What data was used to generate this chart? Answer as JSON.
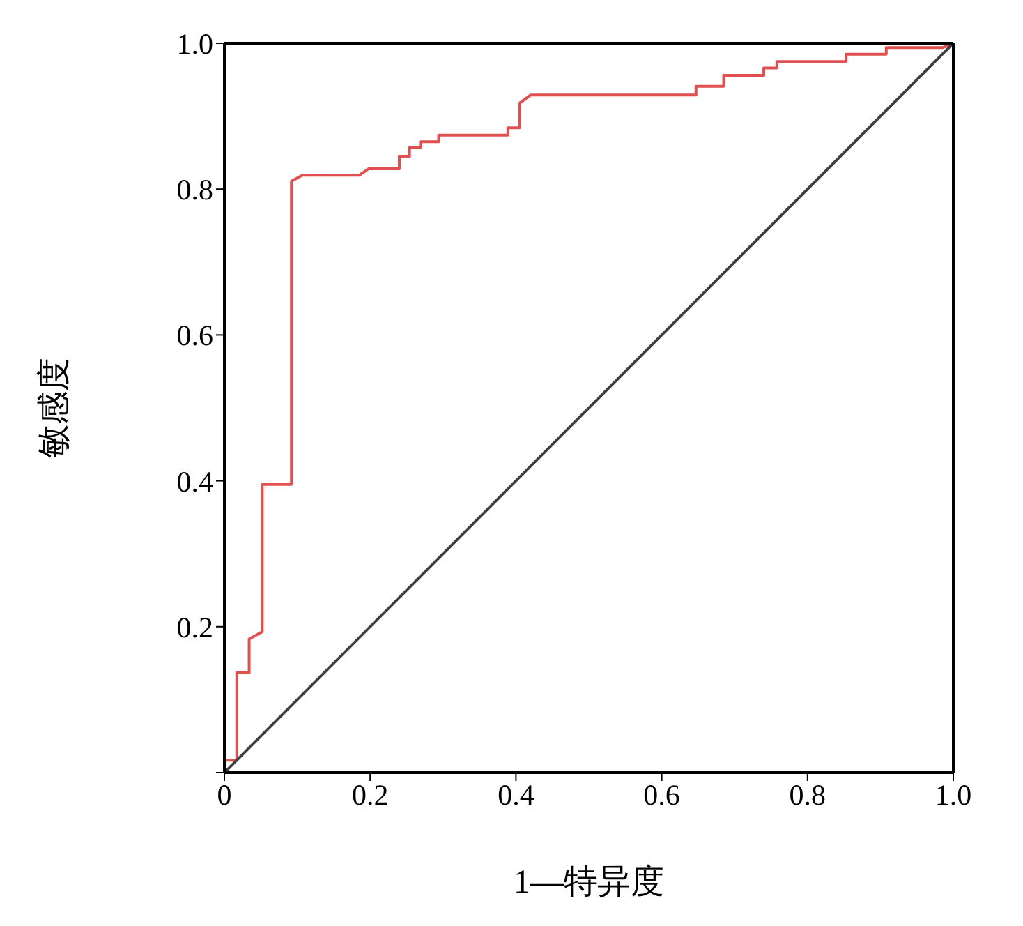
{
  "chart_data": {
    "type": "line",
    "xlabel": "1—特异度",
    "ylabel": "敏感度",
    "xlim": [
      0,
      1
    ],
    "ylim": [
      0,
      1
    ],
    "xticks": [
      0,
      0.2,
      0.4,
      0.6,
      0.8,
      {
        "value": 1,
        "label": "1.0"
      }
    ],
    "yticks": [
      {
        "value": 0,
        "label": null
      },
      0.2,
      0.4,
      0.6,
      0.8,
      {
        "value": 1,
        "label": "1.0"
      }
    ],
    "marker": "none",
    "line_style": "solid",
    "series": [
      {
        "color": "#e05050",
        "x": [
          0,
          0,
          0.017,
          0.017,
          0.034,
          0.034,
          0.052,
          0.052,
          0.092,
          0.092,
          0.107,
          0.185,
          0.198,
          0.24,
          0.24,
          0.254,
          0.254,
          0.269,
          0.269,
          0.294,
          0.294,
          0.389,
          0.389,
          0.405,
          0.405,
          0.42,
          0.647,
          0.647,
          0.685,
          0.685,
          0.74,
          0.74,
          0.758,
          0.758,
          0.853,
          0.853,
          0.908,
          0.908,
          0.985,
          1
        ],
        "values": [
          0,
          0.017,
          0.017,
          0.137,
          0.137,
          0.183,
          0.193,
          0.395,
          0.395,
          0.811,
          0.819,
          0.819,
          0.828,
          0.828,
          0.845,
          0.845,
          0.857,
          0.857,
          0.865,
          0.865,
          0.874,
          0.874,
          0.884,
          0.884,
          0.918,
          0.929,
          0.929,
          0.941,
          0.941,
          0.956,
          0.956,
          0.966,
          0.966,
          0.975,
          0.975,
          0.985,
          0.985,
          0.994,
          0.994,
          1
        ]
      },
      {
        "color": "#404040",
        "x": [
          0,
          1
        ],
        "values": [
          0,
          1
        ]
      }
    ]
  }
}
